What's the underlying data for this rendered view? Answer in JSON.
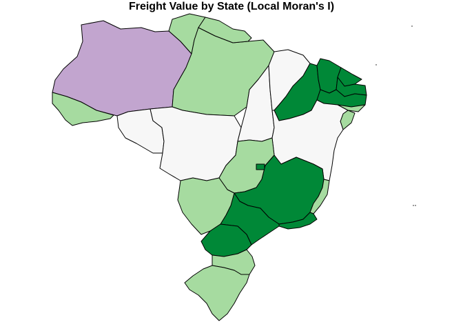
{
  "title": "Freight Value by State (Local Moran's I)",
  "colors": {
    "high_high": "#008837",
    "low_high": "#a6dba0",
    "not_significant": "#f7f7f7",
    "low_low": "#c2a5cf",
    "border": "#000000",
    "background": "#ffffff"
  },
  "states": [
    {
      "name": "Amazonas",
      "class": "low_low"
    },
    {
      "name": "Acre",
      "class": "low_high"
    },
    {
      "name": "Roraima",
      "class": "low_high"
    },
    {
      "name": "Pará",
      "class": "low_high"
    },
    {
      "name": "Amapá",
      "class": "low_high"
    },
    {
      "name": "Rondônia",
      "class": "not_significant"
    },
    {
      "name": "Mato Grosso",
      "class": "not_significant"
    },
    {
      "name": "Tocantins",
      "class": "not_significant"
    },
    {
      "name": "Maranhão",
      "class": "not_significant"
    },
    {
      "name": "Piauí",
      "class": "high_high"
    },
    {
      "name": "Ceará",
      "class": "high_high"
    },
    {
      "name": "Rio Grande do Norte",
      "class": "high_high"
    },
    {
      "name": "Paraíba",
      "class": "high_high"
    },
    {
      "name": "Pernambuco",
      "class": "high_high"
    },
    {
      "name": "Alagoas",
      "class": "low_high"
    },
    {
      "name": "Sergipe",
      "class": "low_high"
    },
    {
      "name": "Bahia",
      "class": "not_significant"
    },
    {
      "name": "Goiás",
      "class": "low_high"
    },
    {
      "name": "Distrito Federal",
      "class": "high_high"
    },
    {
      "name": "Minas Gerais",
      "class": "high_high"
    },
    {
      "name": "Espírito Santo",
      "class": "low_high"
    },
    {
      "name": "Rio de Janeiro",
      "class": "high_high"
    },
    {
      "name": "São Paulo",
      "class": "high_high"
    },
    {
      "name": "Mato Grosso do Sul",
      "class": "low_high"
    },
    {
      "name": "Paraná",
      "class": "high_high"
    },
    {
      "name": "Santa Catarina",
      "class": "low_high"
    },
    {
      "name": "Rio Grande do Sul",
      "class": "low_high"
    }
  ]
}
